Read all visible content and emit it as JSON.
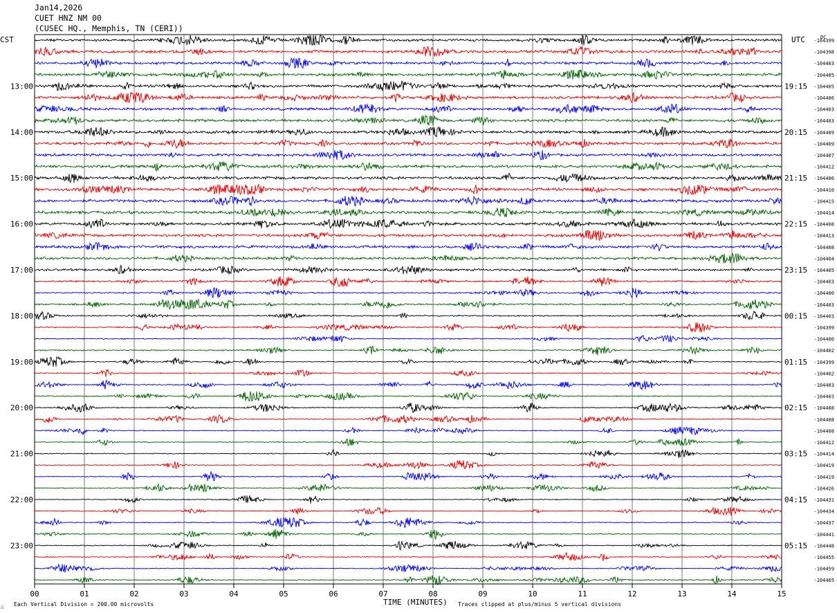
{
  "header": {
    "date": "Jan14,2026",
    "station": "CUET HNZ NM 00",
    "location": "(CUSEC HQ., Memphis, TN (CERI))"
  },
  "left_tz_label": "CST",
  "right_tz_label": "UTC",
  "dc_label": "DC",
  "footer": {
    "scale_note": "Each Vertical Division =  200.00 microvolts",
    "clip_note": "Traces clipped at plus/minus 5 vertical divisions",
    "mark": "∴"
  },
  "chart_data": {
    "type": "line",
    "title": "",
    "xlabel": "TIME (MINUTES)",
    "ylabel": "",
    "xlim": [
      0,
      15
    ],
    "x_ticks": [
      "00",
      "01",
      "02",
      "03",
      "04",
      "05",
      "06",
      "07",
      "08",
      "09",
      "10",
      "11",
      "12",
      "13",
      "14",
      "15"
    ],
    "grid": "vertical lines at each minute",
    "trace_minutes": 15,
    "trace_colors": [
      "#000000",
      "#e00000",
      "#0000e0",
      "#006000"
    ],
    "left_hour_labels": [
      "13:00",
      "14:00",
      "15:00",
      "16:00",
      "17:00",
      "18:00",
      "19:00",
      "20:00",
      "21:00",
      "22:00",
      "23:00"
    ],
    "right_hour_labels": [
      "19:15",
      "20:15",
      "21:15",
      "22:15",
      "23:15",
      "00:15",
      "01:15",
      "02:15",
      "03:15",
      "04:15",
      "05:15"
    ],
    "first_hour_label_row": 4,
    "rows_per_hour": 4,
    "dc_offsets": [
      -104399,
      -104398,
      -104403,
      -104405,
      -104405,
      -104406,
      -104403,
      -104403,
      -104409,
      -104409,
      -104407,
      -104412,
      -104406,
      -104410,
      -104415,
      -104414,
      -104408,
      -104413,
      -104408,
      -104404,
      -104405,
      -104403,
      -104400,
      -104403,
      -104403,
      -104399,
      -104400,
      -104402,
      -104399,
      -104402,
      -104403,
      -104403,
      -104408,
      -104408,
      -104408,
      -104412,
      -104414,
      -104419,
      -104419,
      -104426,
      -104431,
      -104434,
      -104437,
      -104441,
      -104448,
      -104455,
      -104459,
      -104465
    ],
    "row_noise_level": [
      1.4,
      1.5,
      1.4,
      1.5,
      1.4,
      1.5,
      1.4,
      1.5,
      1.6,
      1.5,
      1.4,
      1.5,
      1.6,
      1.6,
      1.6,
      1.6,
      1.5,
      1.5,
      1.5,
      1.4,
      1.2,
      0.9,
      0.8,
      0.9,
      0.7,
      0.7,
      0.6,
      0.7,
      0.6,
      0.6,
      0.6,
      0.6,
      0.5,
      0.5,
      0.5,
      0.5,
      0.5,
      0.5,
      0.5,
      0.5,
      0.5,
      0.5,
      0.5,
      0.5,
      0.5,
      0.5,
      0.5,
      0.5
    ]
  }
}
